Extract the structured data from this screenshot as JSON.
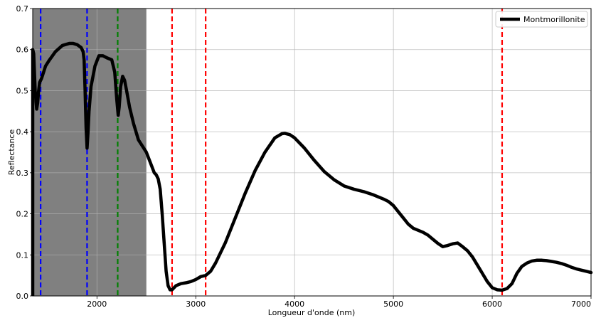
{
  "chart_data": {
    "type": "line",
    "xlabel": "Longueur d'onde  (nm)",
    "ylabel": "Reflectance",
    "xlim": [
      1350,
      7000
    ],
    "ylim": [
      0,
      0.7
    ],
    "x_ticks": [
      2000,
      3000,
      4000,
      5000,
      6000,
      7000
    ],
    "y_ticks": [
      0.0,
      0.1,
      0.2,
      0.3,
      0.4,
      0.5,
      0.6,
      0.7
    ],
    "x_tick_labels": [
      "2000",
      "3000",
      "4000",
      "5000",
      "6000",
      "7000"
    ],
    "y_tick_labels": [
      "0.0",
      "0.1",
      "0.2",
      "0.3",
      "0.4",
      "0.5",
      "0.6",
      "0.7"
    ],
    "grid": true,
    "legend_position": "top-right",
    "shaded_region": {
      "x_start": 1350,
      "x_end": 2500,
      "color": "#808080"
    },
    "vertical_lines": [
      {
        "x": 1430,
        "color": "#0000ff",
        "style": "dashed"
      },
      {
        "x": 1900,
        "color": "#0000ff",
        "style": "dashed"
      },
      {
        "x": 2210,
        "color": "#008000",
        "style": "dashed"
      },
      {
        "x": 2760,
        "color": "#ff0000",
        "style": "dashed"
      },
      {
        "x": 3100,
        "color": "#ff0000",
        "style": "dashed"
      },
      {
        "x": 6100,
        "color": "#ff0000",
        "style": "dashed"
      }
    ],
    "series": [
      {
        "name": "Montmorillonite",
        "color": "#000000",
        "x": [
          1350,
          1360,
          1375,
          1390,
          1400,
          1410,
          1420,
          1440,
          1460,
          1480,
          1520,
          1580,
          1650,
          1720,
          1760,
          1800,
          1840,
          1860,
          1870,
          1880,
          1890,
          1900,
          1910,
          1920,
          1940,
          1980,
          2020,
          2060,
          2100,
          2150,
          2180,
          2200,
          2215,
          2225,
          2240,
          2260,
          2280,
          2300,
          2330,
          2370,
          2420,
          2460,
          2500,
          2540,
          2580,
          2600,
          2620,
          2640,
          2660,
          2680,
          2700,
          2720,
          2740,
          2760,
          2780,
          2800,
          2850,
          2900,
          2950,
          3000,
          3050,
          3100,
          3150,
          3200,
          3300,
          3400,
          3500,
          3600,
          3700,
          3800,
          3870,
          3900,
          3950,
          4000,
          4100,
          4200,
          4300,
          4400,
          4500,
          4600,
          4700,
          4800,
          4900,
          4950,
          5000,
          5050,
          5100,
          5150,
          5200,
          5300,
          5350,
          5400,
          5450,
          5500,
          5550,
          5600,
          5650,
          5700,
          5750,
          5800,
          5850,
          5900,
          5950,
          6000,
          6050,
          6100,
          6150,
          6200,
          6250,
          6300,
          6350,
          6400,
          6450,
          6500,
          6550,
          6600,
          6650,
          6700,
          6750,
          6800,
          6850,
          6900,
          6950,
          7000
        ],
        "values": [
          0.6,
          0.59,
          0.5,
          0.455,
          0.47,
          0.5,
          0.52,
          0.53,
          0.545,
          0.56,
          0.575,
          0.595,
          0.61,
          0.615,
          0.615,
          0.612,
          0.605,
          0.595,
          0.575,
          0.5,
          0.41,
          0.36,
          0.4,
          0.45,
          0.51,
          0.56,
          0.585,
          0.585,
          0.58,
          0.575,
          0.545,
          0.48,
          0.44,
          0.46,
          0.51,
          0.535,
          0.525,
          0.5,
          0.46,
          0.42,
          0.38,
          0.365,
          0.35,
          0.325,
          0.3,
          0.295,
          0.285,
          0.26,
          0.2,
          0.13,
          0.06,
          0.025,
          0.015,
          0.015,
          0.02,
          0.025,
          0.03,
          0.032,
          0.035,
          0.04,
          0.047,
          0.05,
          0.06,
          0.08,
          0.13,
          0.19,
          0.25,
          0.305,
          0.35,
          0.385,
          0.395,
          0.396,
          0.393,
          0.385,
          0.36,
          0.33,
          0.303,
          0.283,
          0.268,
          0.26,
          0.254,
          0.246,
          0.236,
          0.23,
          0.22,
          0.205,
          0.19,
          0.175,
          0.165,
          0.155,
          0.148,
          0.138,
          0.128,
          0.12,
          0.123,
          0.127,
          0.129,
          0.12,
          0.11,
          0.095,
          0.075,
          0.055,
          0.035,
          0.02,
          0.015,
          0.014,
          0.018,
          0.03,
          0.055,
          0.072,
          0.08,
          0.085,
          0.087,
          0.087,
          0.086,
          0.084,
          0.082,
          0.079,
          0.075,
          0.07,
          0.066,
          0.063,
          0.06,
          0.057
        ]
      }
    ]
  }
}
